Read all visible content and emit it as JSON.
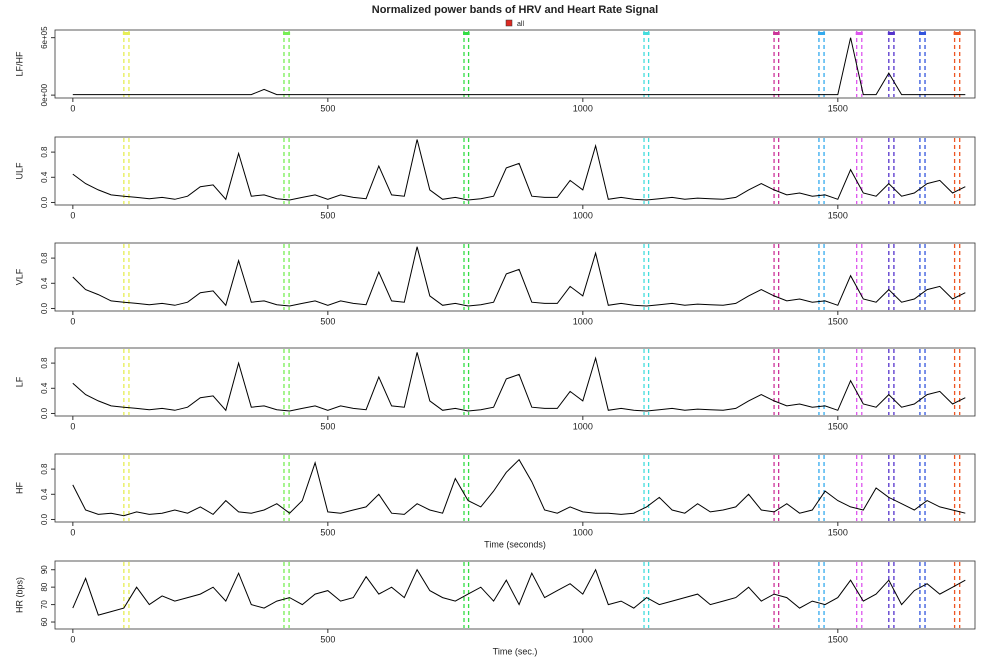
{
  "title": "Normalized power bands of HRV and Heart Rate Signal",
  "legend": {
    "label": "all",
    "color": "#dd2a22"
  },
  "episodes": [
    {
      "color": "#e6ee55",
      "x": [
        100,
        110
      ]
    },
    {
      "color": "#77ee55",
      "x": [
        414,
        424
      ]
    },
    {
      "color": "#33dd44",
      "x": [
        767,
        776
      ]
    },
    {
      "color": "#44dddd",
      "x": [
        1120,
        1129
      ]
    },
    {
      "color": "#cc3399",
      "x": [
        1375,
        1384
      ]
    },
    {
      "color": "#33aaee",
      "x": [
        1463,
        1473
      ]
    },
    {
      "color": "#dd55ee",
      "x": [
        1537,
        1547
      ]
    },
    {
      "color": "#5533cc",
      "x": [
        1600,
        1610
      ]
    },
    {
      "color": "#3355dd",
      "x": [
        1661,
        1671
      ]
    },
    {
      "color": "#ee5522",
      "x": [
        1729,
        1739
      ]
    }
  ],
  "chart_data": [
    {
      "type": "line",
      "ylabel": "LF/HF",
      "xlim": [
        -35,
        1769
      ],
      "xticks": [
        0,
        500,
        1000,
        1500
      ],
      "ylim": [
        -30000,
        680000
      ],
      "yticks": [
        {
          "value": 0,
          "label": "0e+00"
        },
        {
          "value": 600000,
          "label": "6e+05"
        }
      ],
      "x": [
        0,
        25,
        50,
        75,
        100,
        125,
        150,
        175,
        200,
        225,
        250,
        275,
        300,
        325,
        350,
        375,
        400,
        425,
        450,
        475,
        500,
        525,
        550,
        575,
        600,
        625,
        650,
        675,
        700,
        725,
        750,
        775,
        800,
        825,
        850,
        875,
        900,
        925,
        950,
        975,
        1000,
        1025,
        1050,
        1075,
        1100,
        1125,
        1150,
        1175,
        1200,
        1225,
        1250,
        1275,
        1300,
        1325,
        1350,
        1375,
        1400,
        1425,
        1450,
        1475,
        1500,
        1525,
        1550,
        1575,
        1600,
        1625,
        1650,
        1675,
        1700,
        1725,
        1750
      ],
      "series": [
        {
          "color": "#000000",
          "values": [
            5000,
            5000,
            5000,
            5000,
            5000,
            5000,
            5000,
            5000,
            5000,
            5000,
            5000,
            5000,
            5000,
            5000,
            5000,
            60000,
            5000,
            5000,
            5000,
            5000,
            5000,
            5000,
            5000,
            5000,
            5000,
            5000,
            5000,
            5000,
            5000,
            5000,
            5000,
            5000,
            5000,
            5000,
            5000,
            5000,
            5000,
            5000,
            5000,
            5000,
            5000,
            5000,
            5000,
            5000,
            5000,
            5000,
            5000,
            5000,
            5000,
            5000,
            5000,
            5000,
            5000,
            5000,
            5000,
            5000,
            5000,
            5000,
            5000,
            5000,
            5000,
            600000,
            5000,
            5000,
            230000,
            5000,
            5000,
            5000,
            5000,
            5000,
            5000
          ]
        }
      ]
    },
    {
      "type": "line",
      "ylabel": "ULF",
      "xlim": [
        -35,
        1769
      ],
      "xticks": [
        0,
        500,
        1000,
        1500
      ],
      "ylim": [
        -0.04,
        1.04
      ],
      "yticks": [
        {
          "value": 0,
          "label": "0.0"
        },
        0.4,
        0.8
      ],
      "x": [
        0,
        25,
        50,
        75,
        100,
        125,
        150,
        175,
        200,
        225,
        250,
        275,
        300,
        325,
        350,
        375,
        400,
        425,
        450,
        475,
        500,
        525,
        550,
        575,
        600,
        625,
        650,
        675,
        700,
        725,
        750,
        775,
        800,
        825,
        850,
        875,
        900,
        925,
        950,
        975,
        1000,
        1025,
        1050,
        1075,
        1100,
        1125,
        1150,
        1175,
        1200,
        1225,
        1250,
        1275,
        1300,
        1325,
        1350,
        1375,
        1400,
        1425,
        1450,
        1475,
        1500,
        1525,
        1550,
        1575,
        1600,
        1625,
        1650,
        1675,
        1700,
        1725,
        1750
      ],
      "series": [
        {
          "color": "#000000",
          "values": [
            0.45,
            0.3,
            0.2,
            0.12,
            0.1,
            0.08,
            0.06,
            0.08,
            0.05,
            0.1,
            0.25,
            0.28,
            0.05,
            0.78,
            0.1,
            0.12,
            0.06,
            0.04,
            0.08,
            0.12,
            0.05,
            0.12,
            0.08,
            0.06,
            0.58,
            0.12,
            0.1,
            1.0,
            0.2,
            0.05,
            0.08,
            0.04,
            0.06,
            0.1,
            0.55,
            0.62,
            0.1,
            0.08,
            0.08,
            0.35,
            0.2,
            0.9,
            0.05,
            0.08,
            0.05,
            0.04,
            0.06,
            0.08,
            0.05,
            0.07,
            0.06,
            0.05,
            0.08,
            0.2,
            0.3,
            0.2,
            0.12,
            0.15,
            0.1,
            0.12,
            0.05,
            0.52,
            0.15,
            0.1,
            0.3,
            0.1,
            0.15,
            0.3,
            0.35,
            0.15,
            0.25
          ]
        }
      ]
    },
    {
      "type": "line",
      "ylabel": "VLF",
      "xlim": [
        -35,
        1769
      ],
      "xticks": [
        0,
        500,
        1000,
        1500
      ],
      "ylim": [
        -0.04,
        1.04
      ],
      "yticks": [
        {
          "value": 0,
          "label": "0.0"
        },
        0.4,
        0.8
      ],
      "x": [
        0,
        25,
        50,
        75,
        100,
        125,
        150,
        175,
        200,
        225,
        250,
        275,
        300,
        325,
        350,
        375,
        400,
        425,
        450,
        475,
        500,
        525,
        550,
        575,
        600,
        625,
        650,
        675,
        700,
        725,
        750,
        775,
        800,
        825,
        850,
        875,
        900,
        925,
        950,
        975,
        1000,
        1025,
        1050,
        1075,
        1100,
        1125,
        1150,
        1175,
        1200,
        1225,
        1250,
        1275,
        1300,
        1325,
        1350,
        1375,
        1400,
        1425,
        1450,
        1475,
        1500,
        1525,
        1550,
        1575,
        1600,
        1625,
        1650,
        1675,
        1700,
        1725,
        1750
      ],
      "series": [
        {
          "color": "#000000",
          "values": [
            0.5,
            0.3,
            0.22,
            0.12,
            0.1,
            0.08,
            0.06,
            0.08,
            0.05,
            0.1,
            0.25,
            0.28,
            0.05,
            0.76,
            0.1,
            0.12,
            0.06,
            0.04,
            0.08,
            0.12,
            0.05,
            0.12,
            0.08,
            0.06,
            0.58,
            0.12,
            0.1,
            0.98,
            0.2,
            0.05,
            0.08,
            0.04,
            0.06,
            0.1,
            0.55,
            0.62,
            0.1,
            0.08,
            0.08,
            0.35,
            0.2,
            0.88,
            0.05,
            0.08,
            0.05,
            0.04,
            0.06,
            0.08,
            0.05,
            0.07,
            0.06,
            0.05,
            0.08,
            0.2,
            0.3,
            0.2,
            0.12,
            0.15,
            0.1,
            0.12,
            0.05,
            0.52,
            0.15,
            0.1,
            0.3,
            0.1,
            0.15,
            0.3,
            0.35,
            0.15,
            0.25
          ]
        }
      ]
    },
    {
      "type": "line",
      "ylabel": "LF",
      "xlim": [
        -35,
        1769
      ],
      "xticks": [
        0,
        500,
        1000,
        1500
      ],
      "ylim": [
        -0.04,
        1.04
      ],
      "yticks": [
        {
          "value": 0,
          "label": "0.0"
        },
        0.4,
        0.8
      ],
      "x": [
        0,
        25,
        50,
        75,
        100,
        125,
        150,
        175,
        200,
        225,
        250,
        275,
        300,
        325,
        350,
        375,
        400,
        425,
        450,
        475,
        500,
        525,
        550,
        575,
        600,
        625,
        650,
        675,
        700,
        725,
        750,
        775,
        800,
        825,
        850,
        875,
        900,
        925,
        950,
        975,
        1000,
        1025,
        1050,
        1075,
        1100,
        1125,
        1150,
        1175,
        1200,
        1225,
        1250,
        1275,
        1300,
        1325,
        1350,
        1375,
        1400,
        1425,
        1450,
        1475,
        1500,
        1525,
        1550,
        1575,
        1600,
        1625,
        1650,
        1675,
        1700,
        1725,
        1750
      ],
      "series": [
        {
          "color": "#000000",
          "values": [
            0.48,
            0.3,
            0.2,
            0.12,
            0.1,
            0.08,
            0.06,
            0.08,
            0.05,
            0.1,
            0.25,
            0.28,
            0.05,
            0.8,
            0.1,
            0.12,
            0.06,
            0.04,
            0.08,
            0.12,
            0.05,
            0.12,
            0.08,
            0.06,
            0.58,
            0.12,
            0.1,
            0.97,
            0.2,
            0.05,
            0.08,
            0.04,
            0.06,
            0.1,
            0.55,
            0.62,
            0.1,
            0.08,
            0.08,
            0.35,
            0.2,
            0.88,
            0.05,
            0.08,
            0.05,
            0.04,
            0.06,
            0.08,
            0.05,
            0.07,
            0.06,
            0.05,
            0.08,
            0.2,
            0.3,
            0.2,
            0.12,
            0.15,
            0.1,
            0.12,
            0.05,
            0.52,
            0.15,
            0.1,
            0.3,
            0.1,
            0.15,
            0.3,
            0.35,
            0.15,
            0.25
          ]
        }
      ]
    },
    {
      "type": "line",
      "ylabel": "HF",
      "xlabel": "Time (seconds)",
      "xlim": [
        -35,
        1769
      ],
      "xticks": [
        0,
        500,
        1000,
        1500
      ],
      "ylim": [
        -0.04,
        1.04
      ],
      "yticks": [
        {
          "value": 0,
          "label": "0.0"
        },
        0.4,
        0.8
      ],
      "x": [
        0,
        25,
        50,
        75,
        100,
        125,
        150,
        175,
        200,
        225,
        250,
        275,
        300,
        325,
        350,
        375,
        400,
        425,
        450,
        475,
        500,
        525,
        550,
        575,
        600,
        625,
        650,
        675,
        700,
        725,
        750,
        775,
        800,
        825,
        850,
        875,
        900,
        925,
        950,
        975,
        1000,
        1025,
        1050,
        1075,
        1100,
        1125,
        1150,
        1175,
        1200,
        1225,
        1250,
        1275,
        1300,
        1325,
        1350,
        1375,
        1400,
        1425,
        1450,
        1475,
        1500,
        1525,
        1550,
        1575,
        1600,
        1625,
        1650,
        1675,
        1700,
        1725,
        1750
      ],
      "series": [
        {
          "color": "#000000",
          "values": [
            0.55,
            0.15,
            0.08,
            0.1,
            0.06,
            0.12,
            0.08,
            0.1,
            0.15,
            0.1,
            0.2,
            0.08,
            0.3,
            0.12,
            0.1,
            0.15,
            0.25,
            0.1,
            0.3,
            0.9,
            0.12,
            0.1,
            0.15,
            0.2,
            0.4,
            0.1,
            0.08,
            0.25,
            0.15,
            0.1,
            0.65,
            0.3,
            0.2,
            0.45,
            0.75,
            0.95,
            0.6,
            0.15,
            0.1,
            0.2,
            0.12,
            0.1,
            0.1,
            0.08,
            0.1,
            0.2,
            0.35,
            0.15,
            0.1,
            0.25,
            0.12,
            0.15,
            0.2,
            0.4,
            0.15,
            0.12,
            0.25,
            0.1,
            0.15,
            0.45,
            0.3,
            0.2,
            0.15,
            0.5,
            0.35,
            0.25,
            0.15,
            0.3,
            0.2,
            0.15,
            0.1
          ]
        }
      ]
    },
    {
      "type": "line",
      "ylabel": "HR (bps)",
      "xlabel": "Time (sec.)",
      "xlim": [
        -35,
        1769
      ],
      "xticks": [
        0,
        500,
        1000,
        1500
      ],
      "ylim": [
        56,
        95
      ],
      "yticks": [
        60,
        70,
        80,
        90
      ],
      "x": [
        0,
        25,
        50,
        75,
        100,
        125,
        150,
        175,
        200,
        225,
        250,
        275,
        300,
        325,
        350,
        375,
        400,
        425,
        450,
        475,
        500,
        525,
        550,
        575,
        600,
        625,
        650,
        675,
        700,
        725,
        750,
        775,
        800,
        825,
        850,
        875,
        900,
        925,
        950,
        975,
        1000,
        1025,
        1050,
        1075,
        1100,
        1125,
        1150,
        1175,
        1200,
        1225,
        1250,
        1275,
        1300,
        1325,
        1350,
        1375,
        1400,
        1425,
        1450,
        1475,
        1500,
        1525,
        1550,
        1575,
        1600,
        1625,
        1650,
        1675,
        1700,
        1725,
        1750
      ],
      "series": [
        {
          "color": "#000000",
          "values": [
            68,
            85,
            64,
            66,
            68,
            80,
            70,
            75,
            72,
            74,
            76,
            80,
            72,
            88,
            70,
            68,
            72,
            74,
            70,
            76,
            78,
            72,
            74,
            86,
            76,
            80,
            74,
            90,
            78,
            74,
            72,
            76,
            80,
            72,
            84,
            70,
            88,
            74,
            78,
            82,
            76,
            90,
            70,
            72,
            68,
            74,
            70,
            72,
            74,
            76,
            70,
            72,
            74,
            80,
            72,
            76,
            74,
            68,
            72,
            70,
            74,
            84,
            72,
            76,
            84,
            70,
            78,
            82,
            76,
            80,
            84
          ]
        }
      ]
    }
  ]
}
